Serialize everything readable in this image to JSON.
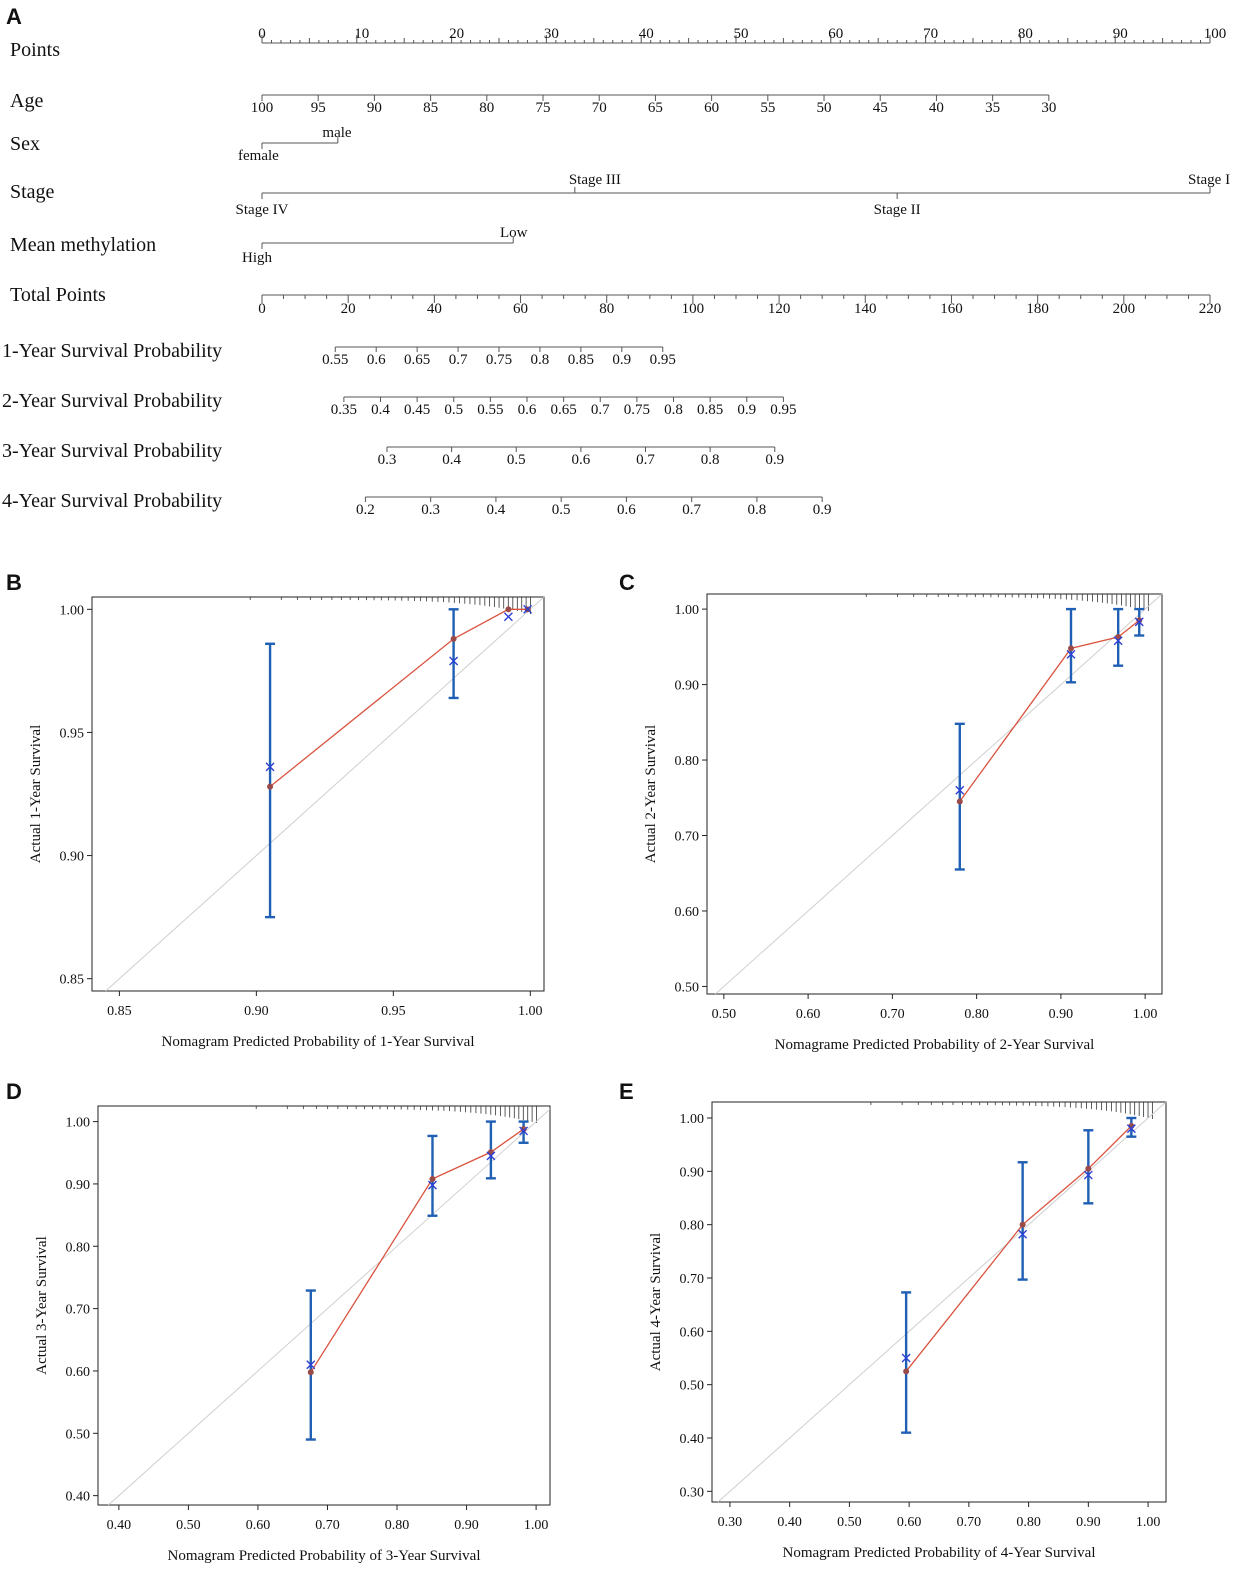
{
  "panel_labels": {
    "a": "A",
    "b": "B",
    "c": "C",
    "d": "D",
    "e": "E"
  },
  "chart_data": [
    {
      "type": "nomogram",
      "panel": "A",
      "points_scale": {
        "label": "Points",
        "range": [
          0,
          100
        ],
        "ticks": [
          "0",
          "10",
          "20",
          "30",
          "40",
          "50",
          "60",
          "70",
          "80",
          "90",
          "100"
        ]
      },
      "variables": [
        {
          "label": "Age",
          "values": [
            "100",
            "95",
            "90",
            "85",
            "80",
            "75",
            "70",
            "65",
            "60",
            "55",
            "50",
            "45",
            "40",
            "35",
            "30"
          ],
          "points_range": [
            0,
            83
          ]
        },
        {
          "label": "Sex",
          "levels": [
            {
              "name": "female",
              "points": 0
            },
            {
              "name": "male",
              "points": 8
            }
          ]
        },
        {
          "label": "Stage",
          "levels": [
            {
              "name": "Stage IV",
              "points": 0
            },
            {
              "name": "Stage III",
              "points": 33
            },
            {
              "name": "Stage II",
              "points": 67
            },
            {
              "name": "Stage I",
              "points": 100
            }
          ]
        },
        {
          "label": "Mean methylation",
          "levels": [
            {
              "name": "High",
              "points": 0
            },
            {
              "name": "Low",
              "points": 26.5
            }
          ]
        }
      ],
      "total_points": {
        "label": "Total Points",
        "range": [
          0,
          220
        ],
        "ticks": [
          "0",
          "20",
          "40",
          "60",
          "80",
          "100",
          "120",
          "140",
          "160",
          "180",
          "200",
          "220"
        ]
      },
      "survival_scales": [
        {
          "label": "1-Year Survival Probability",
          "ticks": [
            "0.55",
            "0.6",
            "0.65",
            "0.7",
            "0.75",
            "0.8",
            "0.85",
            "0.9",
            "0.95"
          ],
          "total_points_range": [
            17,
            93
          ]
        },
        {
          "label": "2-Year Survival Probability",
          "ticks": [
            "0.35",
            "0.4",
            "0.45",
            "0.5",
            "0.55",
            "0.6",
            "0.65",
            "0.7",
            "0.75",
            "0.8",
            "0.85",
            "0.9",
            "0.95"
          ],
          "total_points_range": [
            19,
            121
          ]
        },
        {
          "label": "3-Year Survival Probability",
          "ticks": [
            "0.3",
            "0.4",
            "0.5",
            "0.6",
            "0.7",
            "0.8",
            "0.9"
          ],
          "total_points_range": [
            29,
            119
          ]
        },
        {
          "label": "4-Year Survival Probability",
          "ticks": [
            "0.2",
            "0.3",
            "0.4",
            "0.5",
            "0.6",
            "0.7",
            "0.8",
            "0.9"
          ],
          "total_points_range": [
            24,
            130
          ]
        }
      ]
    },
    {
      "type": "scatter",
      "panel": "B",
      "xlabel": "Nomagram Predicted Probability of 1-Year Survival",
      "ylabel": "Actual 1-Year Survival",
      "xlim": [
        0.84,
        1.005
      ],
      "ylim": [
        0.845,
        1.005
      ],
      "xticks": [
        "0.85",
        "0.90",
        "0.95",
        "1.00"
      ],
      "yticks": [
        "0.85",
        "0.90",
        "0.95",
        "1.00"
      ],
      "series": [
        {
          "name": "observed",
          "points": [
            [
              0.905,
              0.928
            ],
            [
              0.972,
              0.988
            ],
            [
              0.992,
              1.0
            ],
            [
              0.999,
              1.0
            ]
          ]
        },
        {
          "name": "bias-corrected",
          "points": [
            [
              0.905,
              0.936
            ],
            [
              0.972,
              0.979
            ],
            [
              0.992,
              0.997
            ],
            [
              0.999,
              1.0
            ]
          ]
        }
      ],
      "error_bars": [
        [
          0.905,
          0.875,
          0.986
        ],
        [
          0.972,
          0.964,
          1.0
        ]
      ]
    },
    {
      "type": "scatter",
      "panel": "C",
      "xlabel": "Nomagrame Predicted Probability of 2-Year Survival",
      "ylabel": "Actual 2-Year Survival",
      "xlim": [
        0.48,
        1.02
      ],
      "ylim": [
        0.49,
        1.02
      ],
      "xticks": [
        "0.50",
        "0.60",
        "0.70",
        "0.80",
        "0.90",
        "1.00"
      ],
      "yticks": [
        "0.50",
        "0.60",
        "0.70",
        "0.80",
        "0.90",
        "1.00"
      ],
      "series": [
        {
          "name": "observed",
          "points": [
            [
              0.78,
              0.745
            ],
            [
              0.912,
              0.948
            ],
            [
              0.968,
              0.963
            ],
            [
              0.993,
              0.985
            ]
          ]
        },
        {
          "name": "bias-corrected",
          "points": [
            [
              0.78,
              0.76
            ],
            [
              0.912,
              0.94
            ],
            [
              0.968,
              0.958
            ],
            [
              0.993,
              0.983
            ]
          ]
        }
      ],
      "error_bars": [
        [
          0.78,
          0.655,
          0.848
        ],
        [
          0.912,
          0.903,
          1.0
        ],
        [
          0.968,
          0.925,
          1.0
        ],
        [
          0.993,
          0.965,
          1.0
        ]
      ]
    },
    {
      "type": "scatter",
      "panel": "D",
      "xlabel": "Nomagram Predicted Probability of 3-Year Survival",
      "ylabel": "Actual 3-Year Survival",
      "xlim": [
        0.37,
        1.02
      ],
      "ylim": [
        0.385,
        1.025
      ],
      "xticks": [
        "0.40",
        "0.50",
        "0.60",
        "0.70",
        "0.80",
        "0.90",
        "1.00"
      ],
      "yticks": [
        "0.40",
        "0.50",
        "0.60",
        "0.70",
        "0.80",
        "0.90",
        "1.00"
      ],
      "series": [
        {
          "name": "observed",
          "points": [
            [
              0.676,
              0.598
            ],
            [
              0.851,
              0.908
            ],
            [
              0.935,
              0.951
            ],
            [
              0.982,
              0.988
            ]
          ]
        },
        {
          "name": "bias-corrected",
          "points": [
            [
              0.676,
              0.61
            ],
            [
              0.851,
              0.898
            ],
            [
              0.935,
              0.945
            ],
            [
              0.982,
              0.985
            ]
          ]
        }
      ],
      "error_bars": [
        [
          0.676,
          0.49,
          0.729
        ],
        [
          0.851,
          0.849,
          0.977
        ],
        [
          0.935,
          0.909,
          1.0
        ],
        [
          0.982,
          0.966,
          1.0
        ]
      ]
    },
    {
      "type": "scatter",
      "panel": "E",
      "xlabel": "Nomagram Predicted Probability of 4-Year Survival",
      "ylabel": "Actual 4-Year Survival",
      "xlim": [
        0.27,
        1.03
      ],
      "ylim": [
        0.28,
        1.03
      ],
      "xticks": [
        "0.30",
        "0.40",
        "0.50",
        "0.60",
        "0.70",
        "0.80",
        "0.90",
        "1.00"
      ],
      "yticks": [
        "0.30",
        "0.40",
        "0.50",
        "0.60",
        "0.70",
        "0.80",
        "0.90",
        "1.00"
      ],
      "series": [
        {
          "name": "observed",
          "points": [
            [
              0.595,
              0.525
            ],
            [
              0.79,
              0.8
            ],
            [
              0.9,
              0.905
            ],
            [
              0.972,
              0.985
            ]
          ]
        },
        {
          "name": "bias-corrected",
          "points": [
            [
              0.595,
              0.55
            ],
            [
              0.79,
              0.782
            ],
            [
              0.9,
              0.893
            ],
            [
              0.972,
              0.98
            ]
          ]
        }
      ],
      "error_bars": [
        [
          0.595,
          0.41,
          0.673
        ],
        [
          0.79,
          0.697,
          0.917
        ],
        [
          0.9,
          0.84,
          0.977
        ],
        [
          0.972,
          0.965,
          1.0
        ]
      ]
    }
  ]
}
